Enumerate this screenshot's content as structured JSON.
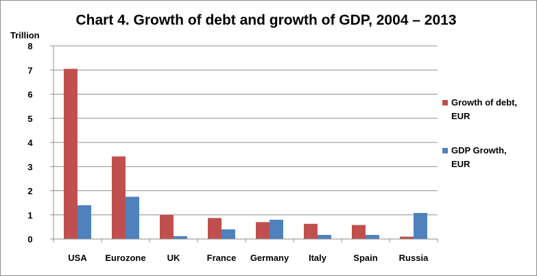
{
  "chart_data": {
    "type": "bar",
    "title": "Chart 4. Growth of debt and growth of GDP, 2004 – 2013",
    "unit_label": "Trillion",
    "categories": [
      "USA",
      "Eurozone",
      "UK",
      "France",
      "Germany",
      "Italy",
      "Spain",
      "Russia"
    ],
    "series": [
      {
        "name_lines": [
          "Growth of debt,",
          "EUR"
        ],
        "color": "#c0504d",
        "values": [
          7.05,
          3.42,
          1.0,
          0.87,
          0.7,
          0.63,
          0.58,
          0.1
        ]
      },
      {
        "name_lines": [
          "GDP Growth,",
          "EUR"
        ],
        "color": "#4f81bd",
        "values": [
          1.4,
          1.75,
          0.12,
          0.4,
          0.8,
          0.17,
          0.17,
          1.08
        ]
      }
    ],
    "ylim": [
      0,
      8
    ],
    "yticks": [
      "0",
      "1",
      "2",
      "3",
      "4",
      "5",
      "6",
      "7",
      "8"
    ],
    "grid": true,
    "legend_position": "right",
    "gridline_color": "#8c8c8c"
  }
}
